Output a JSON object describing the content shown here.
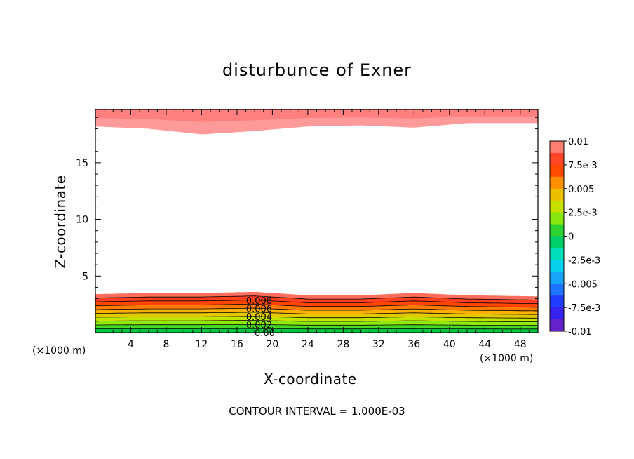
{
  "chart_data": {
    "type": "heatmap",
    "title": "disturbunce of Exner",
    "xlabel": "X-coordinate",
    "ylabel": "Z-coordinate",
    "x_unit_left": "(×1000 m)",
    "x_unit_right": "(×1000 m)",
    "xlim": [
      0,
      50
    ],
    "ylim": [
      0,
      19.7
    ],
    "x_ticks": [
      4,
      8,
      12,
      16,
      20,
      24,
      28,
      32,
      36,
      40,
      44,
      48
    ],
    "y_ticks": [
      5,
      10,
      15
    ],
    "grid": false,
    "contour_interval_text": "CONTOUR INTERVAL = 1.000E-03",
    "colorbar": {
      "labels": [
        "0.01",
        "7.5e-3",
        "0.005",
        "2.5e-3",
        "0",
        "-2.5e-3",
        "-0.005",
        "-7.5e-3",
        "-0.01"
      ],
      "label_values": [
        0.01,
        0.0075,
        0.005,
        0.0025,
        0,
        -0.0025,
        -0.005,
        -0.0075,
        -0.01
      ],
      "range": [
        -0.01,
        0.01
      ],
      "placement": "right"
    },
    "contour_labels": [
      "0.008",
      "0.006",
      "0.004",
      "0.002",
      "0.00"
    ],
    "contour_label_values": [
      0.008,
      0.006,
      0.004,
      0.002,
      0.0
    ],
    "bottom_layer": {
      "x": [
        0,
        6,
        12,
        18,
        24,
        30,
        36,
        42,
        50
      ],
      "top_height": [
        3.4,
        3.5,
        3.5,
        3.6,
        3.3,
        3.3,
        3.5,
        3.3,
        3.2
      ],
      "levels": [
        0.0,
        0.001,
        0.002,
        0.003,
        0.004,
        0.005,
        0.006,
        0.007,
        0.008,
        0.009
      ]
    },
    "top_layer": {
      "x": [
        0,
        6,
        12,
        18,
        24,
        30,
        36,
        42,
        50
      ],
      "bottom_height": [
        18.2,
        18.0,
        17.5,
        17.8,
        18.2,
        18.3,
        18.1,
        18.5,
        18.5
      ],
      "levels": [
        0.009,
        0.01
      ]
    }
  }
}
